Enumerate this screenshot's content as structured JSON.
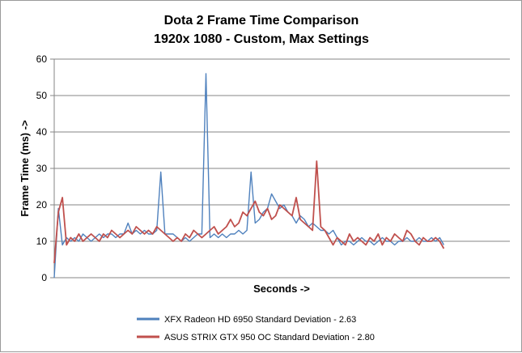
{
  "chart_data": {
    "type": "line",
    "title": "Dota 2 Frame Time Comparison",
    "subtitle": "1920x 1080 - Custom, Max Settings",
    "xlabel": "Seconds ->",
    "ylabel": "Frame Time (ms) ->",
    "ylim": [
      0,
      60
    ],
    "yticks": [
      "0",
      "10",
      "20",
      "30",
      "40",
      "50",
      "60"
    ],
    "grid": true,
    "legend_position": "bottom",
    "x_count": 96,
    "series": [
      {
        "name": "XFX Radeon HD 6950   Standard Deviation - 2.63",
        "color": "#4f81bd",
        "values": [
          0,
          19,
          9,
          11,
          10,
          11,
          10,
          12,
          11,
          10,
          11,
          12,
          11,
          12,
          12,
          11,
          12,
          12,
          15,
          12,
          13,
          12,
          13,
          12,
          12,
          13,
          29,
          12,
          12,
          12,
          11,
          10,
          11,
          10,
          11,
          12,
          12,
          56,
          11,
          12,
          11,
          12,
          11,
          12,
          12,
          13,
          12,
          13,
          29,
          15,
          16,
          18,
          19,
          23,
          21,
          19,
          20,
          18,
          17,
          15,
          17,
          16,
          14,
          15,
          14,
          13,
          13,
          12,
          13,
          11,
          9,
          10,
          10,
          9,
          10,
          11,
          10,
          10,
          9,
          10,
          11,
          10,
          10,
          9,
          10,
          10,
          11,
          10,
          10,
          11,
          10,
          10,
          11,
          10,
          11,
          9
        ]
      },
      {
        "name": "ASUS STRIX GTX 950 OC   Standard Deviation - 2.80",
        "color": "#c0504d",
        "values": [
          4,
          18,
          22,
          9,
          11,
          10,
          12,
          10,
          11,
          12,
          11,
          10,
          12,
          11,
          13,
          12,
          11,
          12,
          13,
          12,
          14,
          13,
          12,
          13,
          12,
          14,
          13,
          12,
          11,
          10,
          11,
          10,
          12,
          11,
          13,
          12,
          11,
          12,
          13,
          14,
          12,
          13,
          14,
          16,
          14,
          15,
          18,
          17,
          19,
          21,
          18,
          17,
          19,
          16,
          17,
          20,
          19,
          18,
          17,
          22,
          16,
          15,
          14,
          13,
          32,
          14,
          13,
          11,
          9,
          11,
          10,
          9,
          12,
          10,
          11,
          10,
          9,
          11,
          10,
          12,
          9,
          11,
          10,
          12,
          11,
          10,
          13,
          12,
          10,
          9,
          11,
          10,
          10,
          11,
          10,
          8
        ]
      }
    ]
  }
}
